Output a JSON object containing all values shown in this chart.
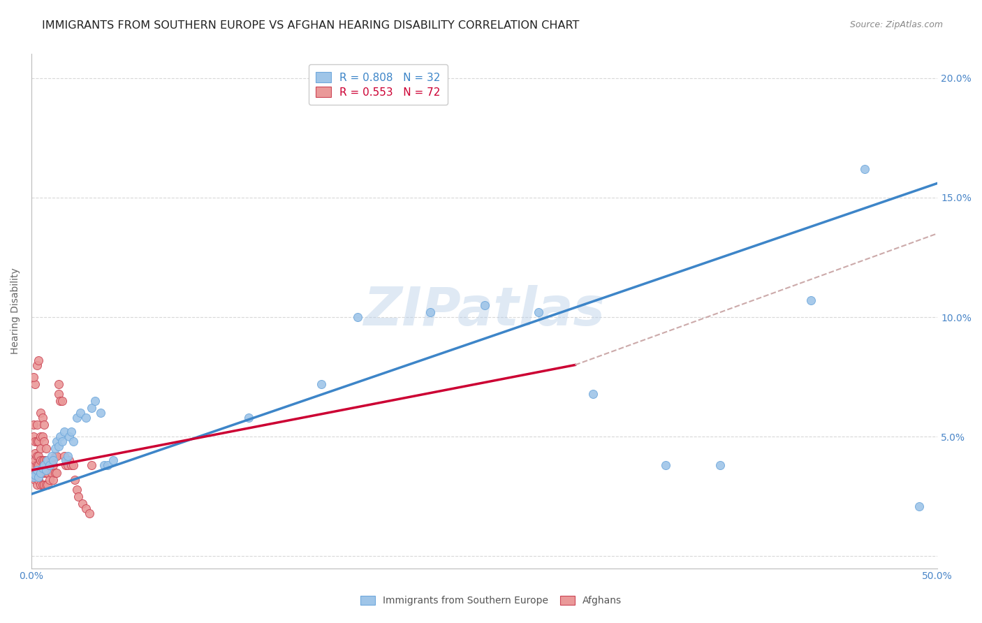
{
  "title": "IMMIGRANTS FROM SOUTHERN EUROPE VS AFGHAN HEARING DISABILITY CORRELATION CHART",
  "source": "Source: ZipAtlas.com",
  "ylabel": "Hearing Disability",
  "xlim": [
    0.0,
    0.5
  ],
  "ylim": [
    -0.005,
    0.21
  ],
  "xtick_vals": [
    0.0,
    0.1,
    0.2,
    0.3,
    0.4,
    0.5
  ],
  "xtick_labels": [
    "0.0%",
    "",
    "",
    "",
    "",
    "50.0%"
  ],
  "ytick_vals": [
    0.0,
    0.05,
    0.1,
    0.15,
    0.2
  ],
  "ytick_labels": [
    "",
    "5.0%",
    "10.0%",
    "15.0%",
    "20.0%"
  ],
  "watermark_text": "ZIPatlas",
  "blue_scatter": [
    [
      0.001,
      0.033
    ],
    [
      0.002,
      0.034
    ],
    [
      0.003,
      0.036
    ],
    [
      0.004,
      0.033
    ],
    [
      0.005,
      0.035
    ],
    [
      0.006,
      0.037
    ],
    [
      0.007,
      0.038
    ],
    [
      0.008,
      0.036
    ],
    [
      0.009,
      0.04
    ],
    [
      0.01,
      0.038
    ],
    [
      0.011,
      0.042
    ],
    [
      0.012,
      0.04
    ],
    [
      0.013,
      0.045
    ],
    [
      0.014,
      0.048
    ],
    [
      0.015,
      0.046
    ],
    [
      0.016,
      0.05
    ],
    [
      0.017,
      0.048
    ],
    [
      0.018,
      0.052
    ],
    [
      0.019,
      0.04
    ],
    [
      0.02,
      0.042
    ],
    [
      0.021,
      0.05
    ],
    [
      0.022,
      0.052
    ],
    [
      0.023,
      0.048
    ],
    [
      0.025,
      0.058
    ],
    [
      0.027,
      0.06
    ],
    [
      0.03,
      0.058
    ],
    [
      0.033,
      0.062
    ],
    [
      0.035,
      0.065
    ],
    [
      0.038,
      0.06
    ],
    [
      0.04,
      0.038
    ],
    [
      0.042,
      0.038
    ],
    [
      0.045,
      0.04
    ],
    [
      0.12,
      0.058
    ],
    [
      0.16,
      0.072
    ],
    [
      0.18,
      0.1
    ],
    [
      0.22,
      0.102
    ],
    [
      0.25,
      0.105
    ],
    [
      0.28,
      0.102
    ],
    [
      0.31,
      0.068
    ],
    [
      0.35,
      0.038
    ],
    [
      0.38,
      0.038
    ],
    [
      0.43,
      0.107
    ],
    [
      0.46,
      0.162
    ],
    [
      0.49,
      0.021
    ]
  ],
  "pink_scatter": [
    [
      0.001,
      0.033
    ],
    [
      0.001,
      0.038
    ],
    [
      0.001,
      0.05
    ],
    [
      0.001,
      0.055
    ],
    [
      0.002,
      0.032
    ],
    [
      0.002,
      0.035
    ],
    [
      0.002,
      0.04
    ],
    [
      0.002,
      0.043
    ],
    [
      0.002,
      0.048
    ],
    [
      0.003,
      0.03
    ],
    [
      0.003,
      0.035
    ],
    [
      0.003,
      0.038
    ],
    [
      0.003,
      0.042
    ],
    [
      0.003,
      0.048
    ],
    [
      0.003,
      0.055
    ],
    [
      0.004,
      0.032
    ],
    [
      0.004,
      0.038
    ],
    [
      0.004,
      0.042
    ],
    [
      0.004,
      0.048
    ],
    [
      0.005,
      0.03
    ],
    [
      0.005,
      0.035
    ],
    [
      0.005,
      0.04
    ],
    [
      0.005,
      0.045
    ],
    [
      0.005,
      0.05
    ],
    [
      0.006,
      0.03
    ],
    [
      0.006,
      0.035
    ],
    [
      0.006,
      0.04
    ],
    [
      0.006,
      0.05
    ],
    [
      0.007,
      0.03
    ],
    [
      0.007,
      0.035
    ],
    [
      0.007,
      0.04
    ],
    [
      0.007,
      0.048
    ],
    [
      0.008,
      0.03
    ],
    [
      0.008,
      0.035
    ],
    [
      0.008,
      0.04
    ],
    [
      0.008,
      0.045
    ],
    [
      0.009,
      0.03
    ],
    [
      0.009,
      0.035
    ],
    [
      0.01,
      0.032
    ],
    [
      0.01,
      0.038
    ],
    [
      0.011,
      0.035
    ],
    [
      0.011,
      0.04
    ],
    [
      0.012,
      0.032
    ],
    [
      0.012,
      0.038
    ],
    [
      0.013,
      0.035
    ],
    [
      0.013,
      0.042
    ],
    [
      0.014,
      0.035
    ],
    [
      0.014,
      0.042
    ],
    [
      0.015,
      0.068
    ],
    [
      0.015,
      0.072
    ],
    [
      0.016,
      0.065
    ],
    [
      0.017,
      0.065
    ],
    [
      0.018,
      0.042
    ],
    [
      0.019,
      0.038
    ],
    [
      0.02,
      0.038
    ],
    [
      0.021,
      0.04
    ],
    [
      0.022,
      0.038
    ],
    [
      0.023,
      0.038
    ],
    [
      0.024,
      0.032
    ],
    [
      0.025,
      0.028
    ],
    [
      0.026,
      0.025
    ],
    [
      0.028,
      0.022
    ],
    [
      0.03,
      0.02
    ],
    [
      0.032,
      0.018
    ],
    [
      0.033,
      0.038
    ],
    [
      0.003,
      0.08
    ],
    [
      0.004,
      0.082
    ],
    [
      0.002,
      0.072
    ],
    [
      0.001,
      0.075
    ],
    [
      0.005,
      0.06
    ],
    [
      0.006,
      0.058
    ],
    [
      0.007,
      0.055
    ]
  ],
  "blue_line": [
    [
      0.0,
      0.026
    ],
    [
      0.5,
      0.156
    ]
  ],
  "pink_line_solid": [
    [
      0.0,
      0.036
    ],
    [
      0.3,
      0.08
    ]
  ],
  "pink_line_dash": [
    [
      0.3,
      0.08
    ],
    [
      0.5,
      0.135
    ]
  ],
  "blue_color": "#9fc5e8",
  "blue_edge_color": "#6fa8dc",
  "blue_line_color": "#3d85c8",
  "pink_color": "#ea9999",
  "pink_edge_color": "#cc4455",
  "pink_line_color": "#cc0033",
  "pink_dash_color": "#ccaaaa",
  "background_color": "#ffffff",
  "grid_color": "#d8d8d8",
  "title_color": "#222222",
  "source_color": "#888888",
  "ylabel_color": "#666666",
  "tick_color": "#4a86c8",
  "title_fontsize": 11.5,
  "tick_fontsize": 10,
  "legend_fontsize": 11
}
